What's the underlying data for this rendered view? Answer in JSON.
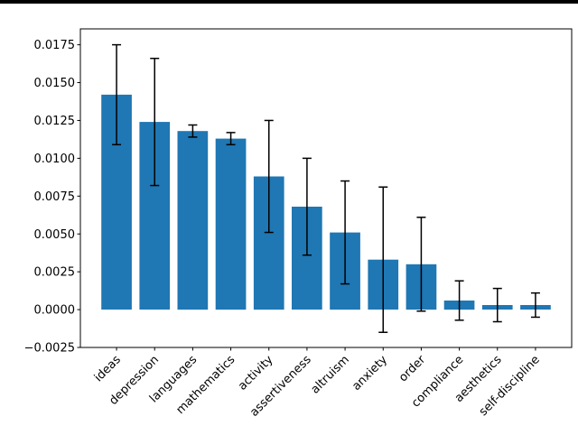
{
  "figure": {
    "background_color": "#ffffff",
    "top_rule_color": "#000000"
  },
  "chart_data": {
    "type": "bar",
    "title": "",
    "xlabel": "",
    "ylabel": "",
    "grid": false,
    "legend": null,
    "bar_color": "#1f77b4",
    "error_color": "#000000",
    "axis_color": "#000000",
    "text_color": "#000000",
    "categories": [
      "ideas",
      "depression",
      "languages",
      "mathematics",
      "activity",
      "assertiveness",
      "altruism",
      "anxiety",
      "order",
      "compliance",
      "aesthetics",
      "self-discipline"
    ],
    "values": [
      0.0142,
      0.0124,
      0.0118,
      0.0113,
      0.0088,
      0.0068,
      0.0051,
      0.0033,
      0.003,
      0.0006,
      0.0003,
      0.0003
    ],
    "error_bars": [
      0.0033,
      0.0042,
      0.0004,
      0.0004,
      0.0037,
      0.0032,
      0.0034,
      0.0048,
      0.0031,
      0.0013,
      0.0011,
      0.0008
    ],
    "ylim": [
      -0.0025,
      0.01855
    ],
    "ytick_values": [
      0.0175,
      0.015,
      0.0125,
      0.01,
      0.0075,
      0.005,
      0.0025,
      0.0,
      -0.0025
    ],
    "ytick_labels": [
      "0.0175",
      "0.0150",
      "0.0125",
      "0.0100",
      "0.0075",
      "0.0050",
      "0.0025",
      "0.0000",
      "−0.0025"
    ],
    "xtick_rotation_deg": 45
  }
}
